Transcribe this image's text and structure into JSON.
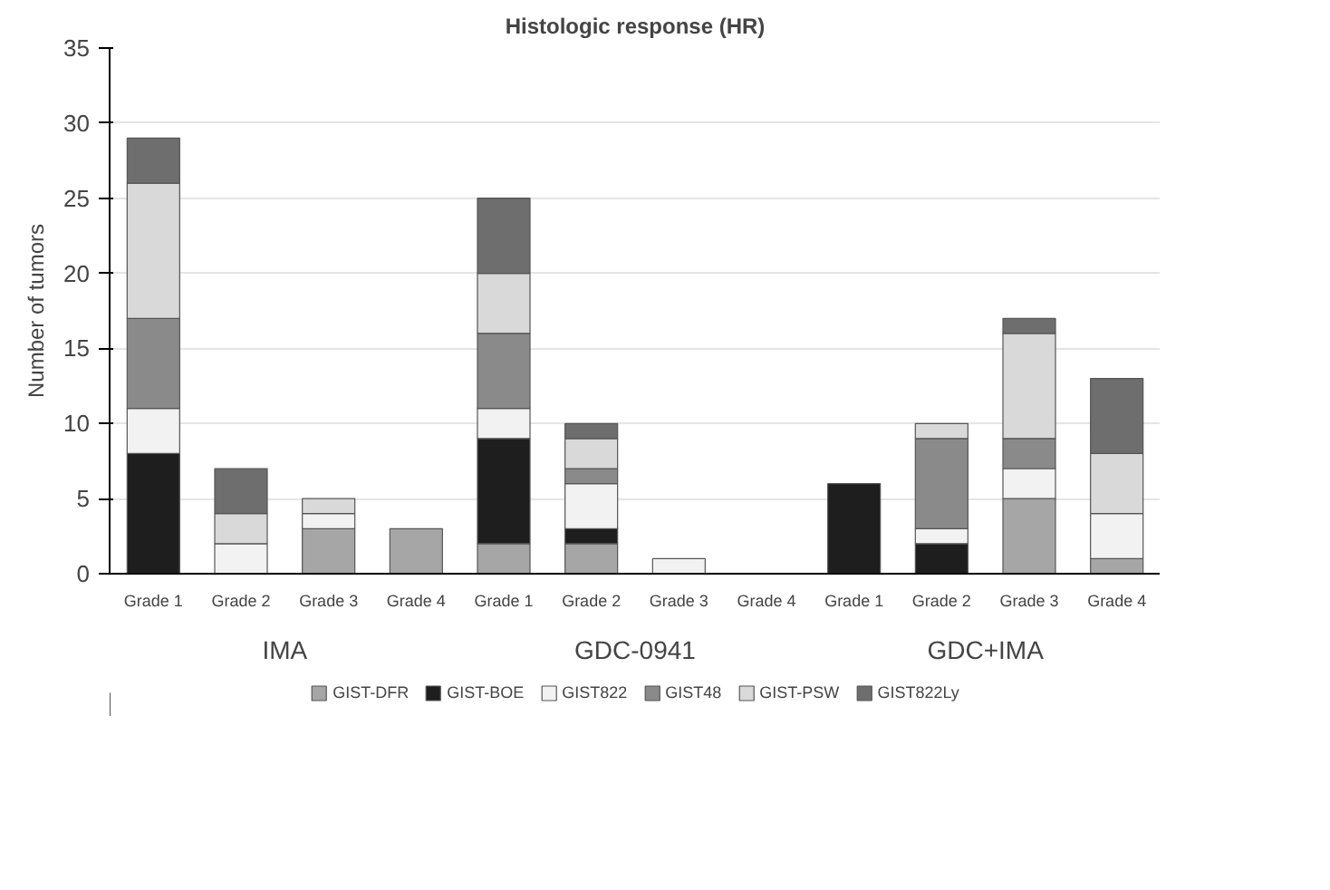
{
  "chart_data": {
    "type": "bar",
    "title": "Histologic response (HR)",
    "ylabel": "Number of tumors",
    "categories": [
      "Grade 1",
      "Grade 2",
      "Grade 3",
      "Grade 4",
      "Grade 1",
      "Grade 2",
      "Grade 3",
      "Grade 4",
      "Grade 1",
      "Grade 2",
      "Grade 3",
      "Grade 4"
    ],
    "annotations": [
      "IMA",
      "GDC-0941",
      "GDC+IMA"
    ],
    "stacked": true,
    "series": [
      {
        "name": "GIST-DFR",
        "color": "#a6a6a6",
        "values": [
          0,
          0,
          3,
          3,
          2,
          2,
          0,
          0,
          0,
          0,
          5,
          1
        ]
      },
      {
        "name": "GIST-BOE",
        "color": "#1e1e1e",
        "values": [
          8,
          0,
          0,
          0,
          7,
          1,
          0,
          0,
          6,
          2,
          0,
          0
        ]
      },
      {
        "name": "GIST822",
        "color": "#f2f2f2",
        "values": [
          3,
          2,
          1,
          0,
          2,
          3,
          1,
          0,
          0,
          1,
          2,
          3
        ]
      },
      {
        "name": "GIST48",
        "color": "#8a8a8a",
        "values": [
          6,
          0,
          0,
          0,
          5,
          1,
          0,
          0,
          0,
          6,
          2,
          0
        ]
      },
      {
        "name": "GIST-PSW",
        "color": "#d9d9d9",
        "values": [
          9,
          2,
          1,
          0,
          4,
          2,
          0,
          0,
          0,
          1,
          7,
          4
        ]
      },
      {
        "name": "GIST822Ly",
        "color": "#6e6e6e",
        "values": [
          3,
          3,
          0,
          0,
          5,
          1,
          0,
          0,
          0,
          0,
          1,
          5
        ]
      }
    ],
    "ylim": [
      0,
      35
    ],
    "yticks": [
      0,
      5,
      10,
      15,
      20,
      25,
      30,
      35
    ],
    "grid": "y",
    "legend": "bottom"
  }
}
